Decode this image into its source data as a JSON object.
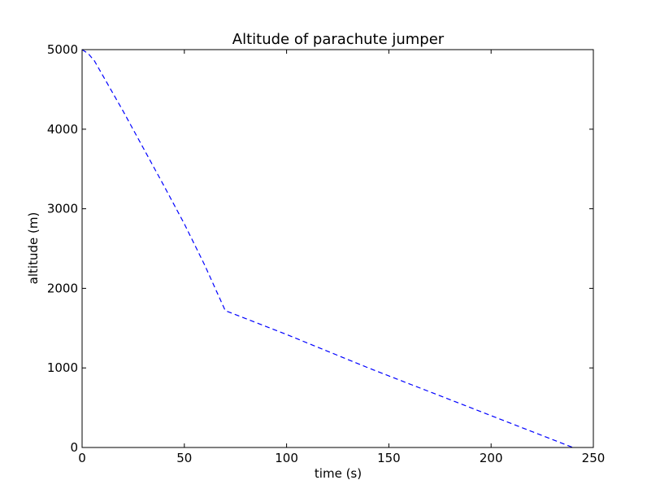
{
  "chart_data": {
    "type": "line",
    "title": "Altitude of parachute jumper",
    "xlabel": "time (s)",
    "ylabel": "altitude (m)",
    "xlim": [
      0,
      250
    ],
    "ylim": [
      0,
      5000
    ],
    "x_ticks": [
      0,
      50,
      100,
      150,
      200,
      250
    ],
    "y_ticks": [
      0,
      1000,
      2000,
      3000,
      4000,
      5000
    ],
    "grid": false,
    "series": [
      {
        "color": "#0000ff",
        "line_style": "dashed",
        "x": [
          0,
          3,
          6,
          10,
          20,
          30,
          40,
          50,
          60,
          70,
          80,
          100,
          120,
          140,
          160,
          180,
          200,
          220,
          240
        ],
        "y": [
          5000,
          4950,
          4860,
          4680,
          4230,
          3760,
          3290,
          2810,
          2290,
          1720,
          1620,
          1420,
          1210,
          1000,
          800,
          600,
          400,
          200,
          0
        ]
      }
    ]
  }
}
